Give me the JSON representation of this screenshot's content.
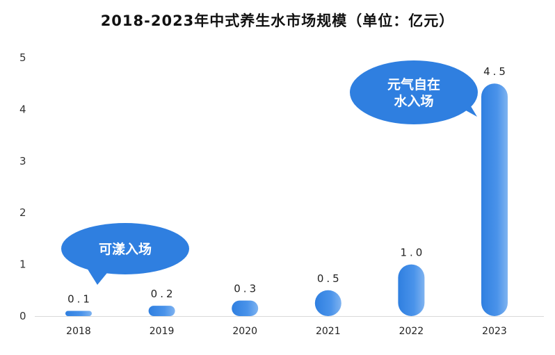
{
  "chart_data": {
    "type": "bar",
    "title": "2018-2023年中式养生水市场规模（单位：亿元）",
    "categories": [
      "2018",
      "2019",
      "2020",
      "2021",
      "2022",
      "2023"
    ],
    "values": [
      0.1,
      0.2,
      0.3,
      0.5,
      1.0,
      4.5
    ],
    "data_labels": [
      "0.1",
      "0.2",
      "0.3",
      "0.5",
      "1.0",
      "4.5"
    ],
    "ylim": [
      0,
      5
    ],
    "yticks": [
      "0",
      "1",
      "2",
      "3",
      "4",
      "5"
    ],
    "xlabel": "",
    "ylabel": "",
    "grid": false,
    "bar_color": "#3b86e0",
    "annotations": [
      {
        "lines": [
          "可漾入场"
        ],
        "near_category": "2018"
      },
      {
        "lines": [
          "元气自在",
          "水入场"
        ],
        "near_category": "2023"
      }
    ]
  }
}
